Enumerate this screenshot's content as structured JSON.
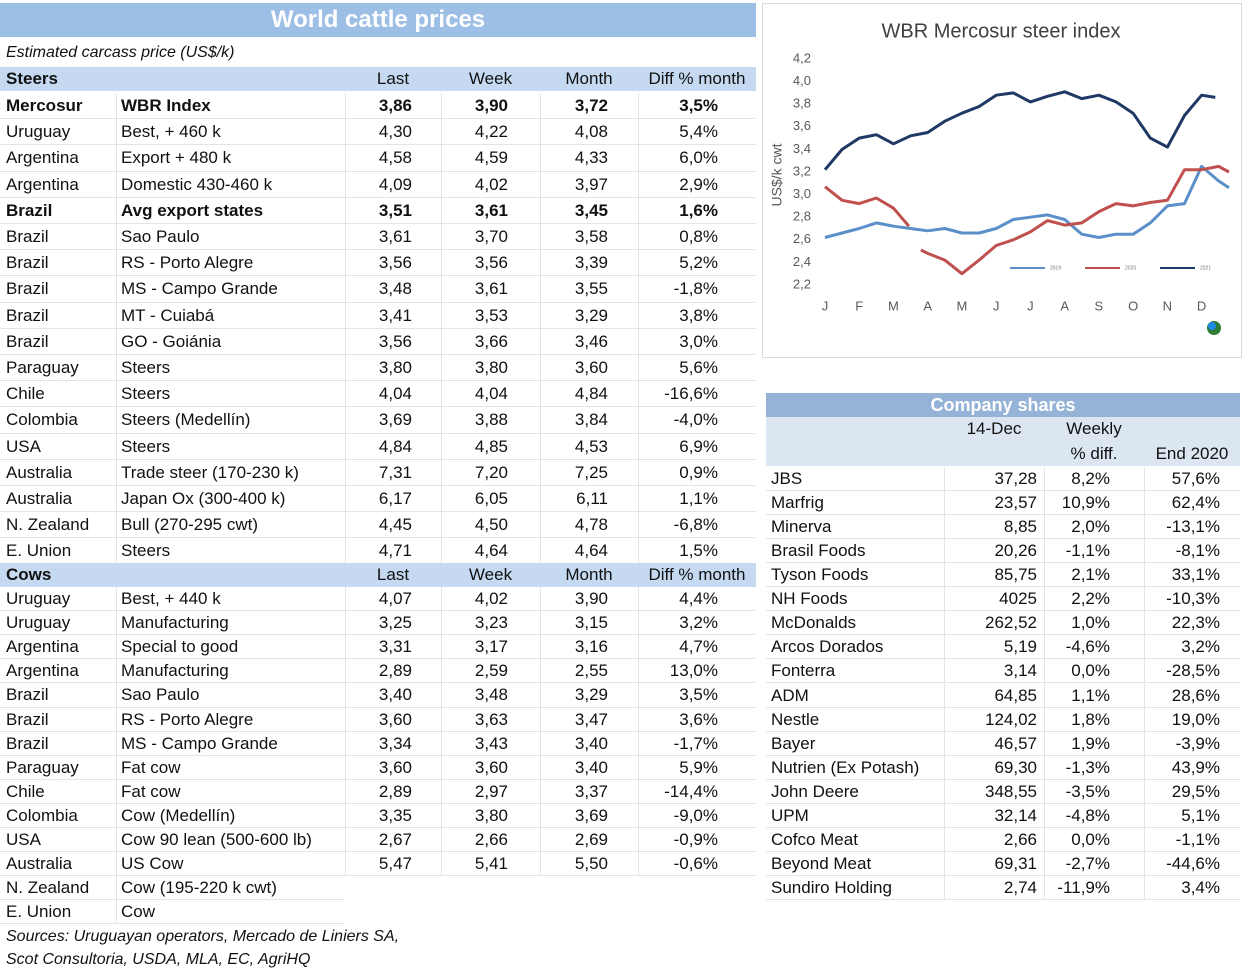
{
  "left_table": {
    "title": "World cattle prices",
    "subtitle": "Estimated carcass price (US$/k)",
    "steers": {
      "label": "Steers",
      "columns": [
        "Last",
        "Week",
        "Month",
        "Diff % month"
      ],
      "rows": [
        {
          "bold": true,
          "cells": [
            "Mercosur",
            "WBR Index",
            "3,86",
            "3,90",
            "3,72",
            "3,5%"
          ]
        },
        {
          "cells": [
            "Uruguay",
            "Best, + 460 k",
            "4,30",
            "4,22",
            "4,08",
            "5,4%"
          ]
        },
        {
          "cells": [
            "Argentina",
            "Export + 480 k",
            "4,58",
            "4,59",
            "4,33",
            "6,0%"
          ]
        },
        {
          "cells": [
            "Argentina",
            "Domestic 430-460 k",
            "4,09",
            "4,02",
            "3,97",
            "2,9%"
          ]
        },
        {
          "bold": true,
          "cells": [
            "Brazil",
            "Avg export states",
            "3,51",
            "3,61",
            "3,45",
            "1,6%"
          ]
        },
        {
          "cells": [
            "Brazil",
            "Sao Paulo",
            "3,61",
            "3,70",
            "3,58",
            "0,8%"
          ]
        },
        {
          "cells": [
            "Brazil",
            "RS - Porto Alegre",
            "3,56",
            "3,56",
            "3,39",
            "5,2%"
          ]
        },
        {
          "cells": [
            "Brazil",
            "MS - Campo Grande",
            "3,48",
            "3,61",
            "3,55",
            "-1,8%"
          ]
        },
        {
          "cells": [
            "Brazil",
            "MT - Cuiabá",
            "3,41",
            "3,53",
            "3,29",
            "3,8%"
          ]
        },
        {
          "cells": [
            "Brazil",
            "GO - Goiánia",
            "3,56",
            "3,66",
            "3,46",
            "3,0%"
          ]
        },
        {
          "cells": [
            "Paraguay",
            "Steers",
            "3,80",
            "3,80",
            "3,60",
            "5,6%"
          ]
        },
        {
          "cells": [
            "Chile",
            "Steers",
            "4,04",
            "4,04",
            "4,84",
            "-16,6%"
          ]
        },
        {
          "cells": [
            "Colombia",
            "Steers (Medellín)",
            "3,69",
            "3,88",
            "3,84",
            "-4,0%"
          ]
        },
        {
          "cells": [
            "USA",
            "Steers",
            "4,84",
            "4,85",
            "4,53",
            "6,9%"
          ]
        },
        {
          "cells": [
            "Australia",
            "Trade steer (170-230 k)",
            "7,31",
            "7,20",
            "7,25",
            "0,9%"
          ]
        },
        {
          "cells": [
            "Australia",
            "Japan Ox (300-400 k)",
            "6,17",
            "6,05",
            "6,11",
            "1,1%"
          ]
        },
        {
          "cells": [
            "N. Zealand",
            "Bull (270-295 cwt)",
            "4,45",
            "4,50",
            "4,78",
            "-6,8%"
          ]
        },
        {
          "cells": [
            "E. Union",
            "Steers",
            "4,71",
            "4,64",
            "4,64",
            "1,5%"
          ]
        }
      ]
    },
    "cows": {
      "label": "Cows",
      "columns": [
        "Last",
        "Week",
        "Month",
        "Diff % month"
      ],
      "rows": [
        {
          "cells": [
            "Uruguay",
            "Best, + 440 k",
            "4,07",
            "4,02",
            "3,90",
            "4,4%"
          ]
        },
        {
          "cells": [
            "Uruguay",
            "Manufacturing",
            "3,25",
            "3,23",
            "3,15",
            "3,2%"
          ]
        },
        {
          "cells": [
            "Argentina",
            "Special to good",
            "3,31",
            "3,17",
            "3,16",
            "4,7%"
          ]
        },
        {
          "cells": [
            "Argentina",
            "Manufacturing",
            "2,89",
            "2,59",
            "2,55",
            "13,0%"
          ]
        },
        {
          "cells": [
            "Brazil",
            "Sao Paulo",
            "3,40",
            "3,48",
            "3,29",
            "3,5%"
          ]
        },
        {
          "cells": [
            "Brazil",
            "RS - Porto Alegre",
            "3,60",
            "3,63",
            "3,47",
            "3,6%"
          ]
        },
        {
          "cells": [
            "Brazil",
            "MS - Campo Grande",
            "3,34",
            "3,43",
            "3,40",
            "-1,7%"
          ]
        },
        {
          "cells": [
            "Paraguay",
            "Fat cow",
            "3,60",
            "3,60",
            "3,40",
            "5,9%"
          ]
        },
        {
          "cells": [
            "Chile",
            "Fat cow",
            "2,89",
            "2,97",
            "3,37",
            "-14,4%"
          ]
        },
        {
          "cells": [
            "Colombia",
            "Cow (Medellín)",
            "3,35",
            "3,80",
            "3,69",
            "-9,0%"
          ]
        },
        {
          "cells": [
            "USA",
            "Cow 90 lean (500-600 lb)",
            "2,67",
            "2,66",
            "2,69",
            "-0,9%"
          ]
        },
        {
          "cells": [
            "Australia",
            "US Cow",
            "5,47",
            "5,41",
            "5,50",
            "-0,6%"
          ]
        },
        {
          "cells": [
            "N. Zealand",
            "Cow (195-220 k cwt)"
          ]
        },
        {
          "cells": [
            "E. Union",
            "Cow"
          ]
        }
      ]
    },
    "sources": [
      "Sources: Uruguayan operators, Mercado de Liniers SA,",
      "Scot Consultoria, USDA, MLA, EC, AgriHQ"
    ]
  },
  "company_shares": {
    "title": "Company shares",
    "headers": [
      "14-Dec",
      "Weekly",
      "% diff.",
      "End 2020"
    ],
    "rows": [
      [
        "JBS",
        "37,28",
        "8,2%",
        "57,6%"
      ],
      [
        "Marfrig",
        "23,57",
        "10,9%",
        "62,4%"
      ],
      [
        "Minerva",
        "8,85",
        "2,0%",
        "-13,1%"
      ],
      [
        "Brasil Foods",
        "20,26",
        "-1,1%",
        "-8,1%"
      ],
      [
        "Tyson Foods",
        "85,75",
        "2,1%",
        "33,1%"
      ],
      [
        "NH Foods",
        "4025",
        "2,2%",
        "-10,3%"
      ],
      [
        "McDonalds",
        "262,52",
        "1,0%",
        "22,3%"
      ],
      [
        "Arcos Dorados",
        "5,19",
        "-4,6%",
        "3,2%"
      ],
      [
        "Fonterra",
        "3,14",
        "0,0%",
        "-28,5%"
      ],
      [
        "ADM",
        "64,85",
        "1,1%",
        "28,6%"
      ],
      [
        "Nestle",
        "124,02",
        "1,8%",
        "19,0%"
      ],
      [
        "Bayer",
        "46,57",
        "1,9%",
        "-3,9%"
      ],
      [
        "Nutrien (Ex Potash)",
        "69,30",
        "-1,3%",
        "43,9%"
      ],
      [
        "John Deere",
        "348,55",
        "-3,5%",
        "29,5%"
      ],
      [
        "UPM",
        "32,14",
        "-4,8%",
        "5,1%"
      ],
      [
        "Cofco Meat",
        "2,66",
        "0,0%",
        "-1,1%"
      ],
      [
        "Beyond Meat",
        "69,31",
        "-2,7%",
        "-44,6%"
      ],
      [
        "Sundiro Holding",
        "2,74",
        "-11,9%",
        "3,4%"
      ]
    ]
  },
  "chart_data": {
    "type": "line",
    "title": "WBR Mercosur steer index",
    "y_label": "US$/k cwt",
    "xlim": [
      0,
      11.8
    ],
    "xticks": [
      {
        "value": 0,
        "label": "J"
      },
      {
        "value": 1,
        "label": "F"
      },
      {
        "value": 2,
        "label": "M"
      },
      {
        "value": 3,
        "label": "A"
      },
      {
        "value": 4,
        "label": "M"
      },
      {
        "value": 5,
        "label": "J"
      },
      {
        "value": 6,
        "label": "J"
      },
      {
        "value": 7,
        "label": "A"
      },
      {
        "value": 8,
        "label": "S"
      },
      {
        "value": 9,
        "label": "O"
      },
      {
        "value": 10,
        "label": "N"
      },
      {
        "value": 11,
        "label": "D"
      }
    ],
    "ylim": [
      2.2,
      4.2
    ],
    "yticks": [
      {
        "value": 2.2,
        "label": "2,2"
      },
      {
        "value": 2.4,
        "label": "2,4"
      },
      {
        "value": 2.6,
        "label": "2,6"
      },
      {
        "value": 2.8,
        "label": "2,8"
      },
      {
        "value": 3.0,
        "label": "3,0"
      },
      {
        "value": 3.2,
        "label": "3,2"
      },
      {
        "value": 3.4,
        "label": "3,4"
      },
      {
        "value": 3.6,
        "label": "3,6"
      },
      {
        "value": 3.8,
        "label": "3,8"
      },
      {
        "value": 4.0,
        "label": "4,0"
      },
      {
        "value": 4.2,
        "label": "4,2"
      }
    ],
    "series": [
      {
        "name": "2019",
        "color": "#5b8fc9",
        "x": [
          0,
          0.5,
          1,
          1.5,
          2,
          2.5,
          3,
          3.5,
          4,
          4.5,
          5,
          5.5,
          6,
          6.5,
          7,
          7.5,
          8,
          8.5,
          9,
          9.5,
          10,
          10.5,
          11,
          11.5,
          11.8
        ],
        "values": [
          2.62,
          2.66,
          2.7,
          2.75,
          2.72,
          2.7,
          2.68,
          2.7,
          2.66,
          2.66,
          2.7,
          2.78,
          2.8,
          2.82,
          2.78,
          2.65,
          2.62,
          2.65,
          2.65,
          2.75,
          2.9,
          2.92,
          3.25,
          3.12,
          3.06
        ]
      },
      {
        "name": "2020",
        "color": "#c0504d",
        "x": [
          0,
          0.5,
          1,
          1.5,
          2,
          2.45,
          2.6,
          2.8,
          3,
          3.5,
          4,
          4.5,
          5,
          5.5,
          6,
          6.5,
          7,
          7.5,
          8,
          8.5,
          9,
          9.5,
          10,
          10.5,
          11,
          11.5,
          11.8
        ],
        "values": [
          3.07,
          2.95,
          2.92,
          2.97,
          2.88,
          2.72,
          null,
          2.51,
          2.48,
          2.42,
          2.3,
          2.42,
          2.55,
          2.6,
          2.67,
          2.77,
          2.73,
          2.75,
          2.85,
          2.92,
          2.9,
          2.93,
          2.95,
          3.22,
          3.22,
          3.25,
          3.2
        ]
      },
      {
        "name": "2021",
        "color": "#1f3864",
        "x": [
          0,
          0.5,
          1,
          1.5,
          2,
          2.5,
          3,
          3.5,
          4,
          4.5,
          5,
          5.5,
          6,
          6.5,
          7,
          7.5,
          8,
          8.5,
          9,
          9.5,
          10,
          10.5,
          11,
          11.4
        ],
        "values": [
          3.22,
          3.4,
          3.5,
          3.53,
          3.45,
          3.52,
          3.55,
          3.65,
          3.72,
          3.78,
          3.88,
          3.9,
          3.82,
          3.87,
          3.91,
          3.85,
          3.88,
          3.82,
          3.72,
          3.5,
          3.42,
          3.7,
          3.88,
          3.86
        ]
      }
    ]
  }
}
